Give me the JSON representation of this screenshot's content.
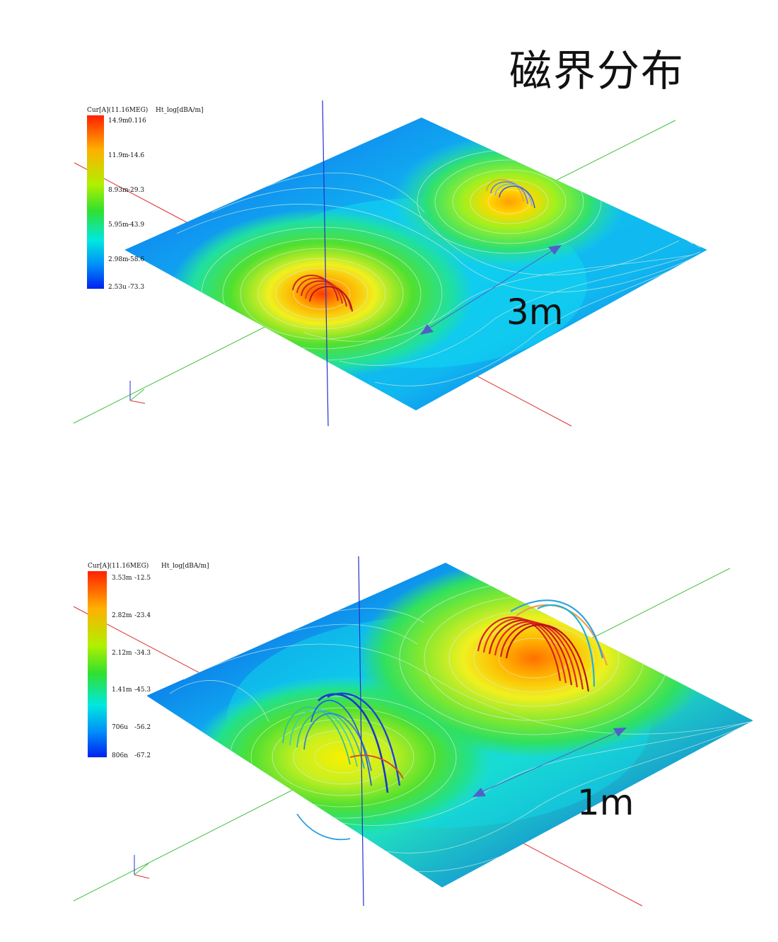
{
  "title": "磁界分布",
  "panels": [
    {
      "legend": {
        "current_header": "Cur[A](11.16MEG)",
        "field_header": "Ht_log[dBA/m]",
        "rows": [
          {
            "current": "14.9m",
            "field": "0.116"
          },
          {
            "current": "11.9m",
            "field": "-14.6"
          },
          {
            "current": "8.93m",
            "field": "-29.3"
          },
          {
            "current": "5.95m",
            "field": "-43.9"
          },
          {
            "current": "2.98m",
            "field": "-58.6"
          },
          {
            "current": "2.53u",
            "field": "-73.3"
          }
        ]
      },
      "distance_label": "3m"
    },
    {
      "legend": {
        "current_header": "Cur[A](11.16MEG)",
        "field_header": "Ht_log[dBA/m]",
        "rows": [
          {
            "current": "3.53m",
            "field": "-12.5"
          },
          {
            "current": "2.82m",
            "field": "-23.4"
          },
          {
            "current": "2.12m",
            "field": "-34.3"
          },
          {
            "current": "1.41m",
            "field": "-45.3"
          },
          {
            "current": "706u",
            "field": "-56.2"
          },
          {
            "current": "806n",
            "field": "-67.2"
          }
        ]
      },
      "distance_label": "1m"
    }
  ],
  "colors": {
    "x_axis": "#e03030",
    "y_axis": "#40c040",
    "z_axis": "#2030d0",
    "arrow": "#5060c8",
    "hot": "#ff2000",
    "warm": "#ffcc00",
    "mid": "#30e030",
    "cool": "#00e0f0",
    "cold": "#0030f0"
  }
}
